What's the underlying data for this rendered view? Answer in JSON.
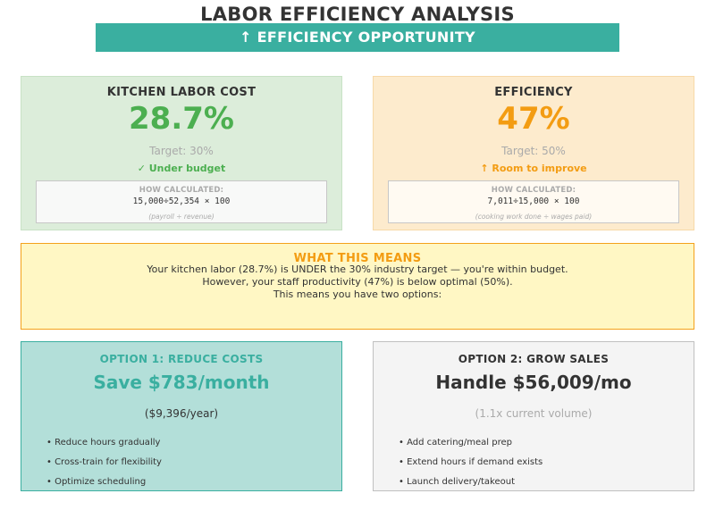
{
  "header": {
    "title": "LABOR EFFICIENCY ANALYSIS",
    "banner": "↑ EFFICIENCY OPPORTUNITY"
  },
  "labor_card": {
    "heading": "KITCHEN LABOR COST",
    "value": "28.7%",
    "target": "Target: 30%",
    "status": "✓ Under budget",
    "calc_label": "HOW CALCULATED:",
    "formula": "15,000÷52,354 × 100",
    "note": "(payroll ÷ revenue)"
  },
  "efficiency_card": {
    "heading": "EFFICIENCY",
    "value": "47%",
    "target": "Target: 50%",
    "status": "↑ Room to improve",
    "calc_label": "HOW CALCULATED:",
    "formula": "7,011÷15,000 × 100",
    "note": "(cooking work done ÷ wages paid)"
  },
  "what_this_means": {
    "title": "WHAT THIS MEANS",
    "lines": [
      "Your kitchen labor (28.7%) is UNDER the 30% industry target — you're within budget.",
      "However, your staff productivity (47%) is below optimal (50%).",
      "This means you have two options:"
    ]
  },
  "option1": {
    "heading": "OPTION 1: REDUCE COSTS",
    "headline": "Save $783/month",
    "sub": "($9,396/year)",
    "bullets": [
      "• Reduce hours gradually",
      "• Cross-train for flexibility",
      "• Optimize scheduling"
    ]
  },
  "option2": {
    "heading": "OPTION 2: GROW SALES",
    "headline": "Handle $56,009/mo",
    "sub": "(1.1x current volume)",
    "bullets": [
      "• Add catering/meal prep",
      "• Extend hours if demand exists",
      "• Launch delivery/takeout"
    ]
  },
  "colors": {
    "teal": "#3aafa0",
    "green": "#4caf50",
    "orange": "#f39c12",
    "muted": "#aaaaaa"
  }
}
